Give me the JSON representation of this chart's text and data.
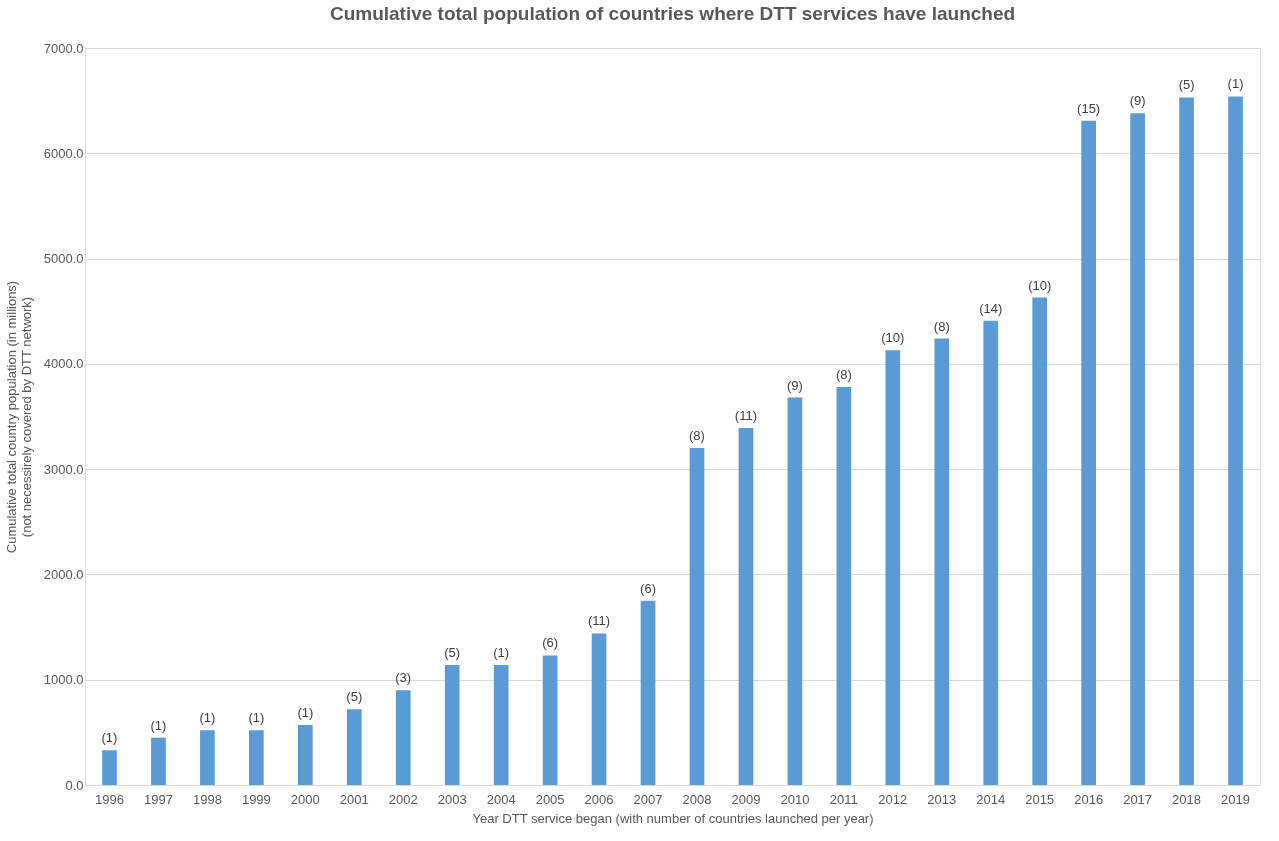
{
  "chart_data": {
    "type": "bar",
    "title": "Cumulative total population of countries where DTT services have launched",
    "xlabel": "Year DTT service began (with number of countries launched per year)",
    "ylabel": "Cumulative total country population (in millions)\n(not necessirely covered by DTT network)",
    "categories": [
      "1996",
      "1997",
      "1998",
      "1999",
      "2000",
      "2001",
      "2002",
      "2003",
      "2004",
      "2005",
      "2006",
      "2007",
      "2008",
      "2009",
      "2010",
      "2011",
      "2012",
      "2013",
      "2014",
      "2015",
      "2016",
      "2017",
      "2018",
      "2019"
    ],
    "series": [
      {
        "color": "#5b9bd5",
        "values": [
          330,
          450,
          520,
          520,
          570,
          720,
          900,
          1140,
          1140,
          1230,
          1440,
          1750,
          3200,
          3390,
          3680,
          3780,
          4130,
          4240,
          4410,
          4630,
          6310,
          6380,
          6530,
          6540
        ]
      }
    ],
    "annotations": [
      {
        "text": "(1)",
        "x": "1996",
        "y": 330
      },
      {
        "text": "(1)",
        "x": "1997",
        "y": 450
      },
      {
        "text": "(1)",
        "x": "1998",
        "y": 520
      },
      {
        "text": "(1)",
        "x": "1999",
        "y": 520
      },
      {
        "text": "(1)",
        "x": "2000",
        "y": 570
      },
      {
        "text": "(5)",
        "x": "2001",
        "y": 720
      },
      {
        "text": "(3)",
        "x": "2002",
        "y": 900
      },
      {
        "text": "(5)",
        "x": "2003",
        "y": 1140
      },
      {
        "text": "(1)",
        "x": "2004",
        "y": 1140
      },
      {
        "text": "(6)",
        "x": "2005",
        "y": 1230
      },
      {
        "text": "(11)",
        "x": "2006",
        "y": 1440
      },
      {
        "text": "(6)",
        "x": "2007",
        "y": 1750
      },
      {
        "text": "(8)",
        "x": "2008",
        "y": 3200
      },
      {
        "text": "(11)",
        "x": "2009",
        "y": 3390
      },
      {
        "text": "(9)",
        "x": "2010",
        "y": 3680
      },
      {
        "text": "(8)",
        "x": "2011",
        "y": 3780
      },
      {
        "text": "(10)",
        "x": "2012",
        "y": 4130
      },
      {
        "text": "(8)",
        "x": "2013",
        "y": 4240
      },
      {
        "text": "(14)",
        "x": "2014",
        "y": 4410
      },
      {
        "text": "(10)",
        "x": "2015",
        "y": 4630
      },
      {
        "text": "(15)",
        "x": "2016",
        "y": 6310
      },
      {
        "text": "(9)",
        "x": "2017",
        "y": 6380
      },
      {
        "text": "(5)",
        "x": "2018",
        "y": 6530
      },
      {
        "text": "(1)",
        "x": "2019",
        "y": 6540
      }
    ],
    "ylim": [
      0,
      7000
    ],
    "yticks": [
      {
        "value": 0,
        "label": "0.0"
      },
      {
        "value": 1000,
        "label": "1000.0"
      },
      {
        "value": 2000,
        "label": "2000.0"
      },
      {
        "value": 3000,
        "label": "3000.0"
      },
      {
        "value": 4000,
        "label": "4000.0"
      },
      {
        "value": 5000,
        "label": "5000.0"
      },
      {
        "value": 6000,
        "label": "6000.0"
      },
      {
        "value": 7000,
        "label": "7000.0"
      }
    ],
    "grid": "y"
  }
}
